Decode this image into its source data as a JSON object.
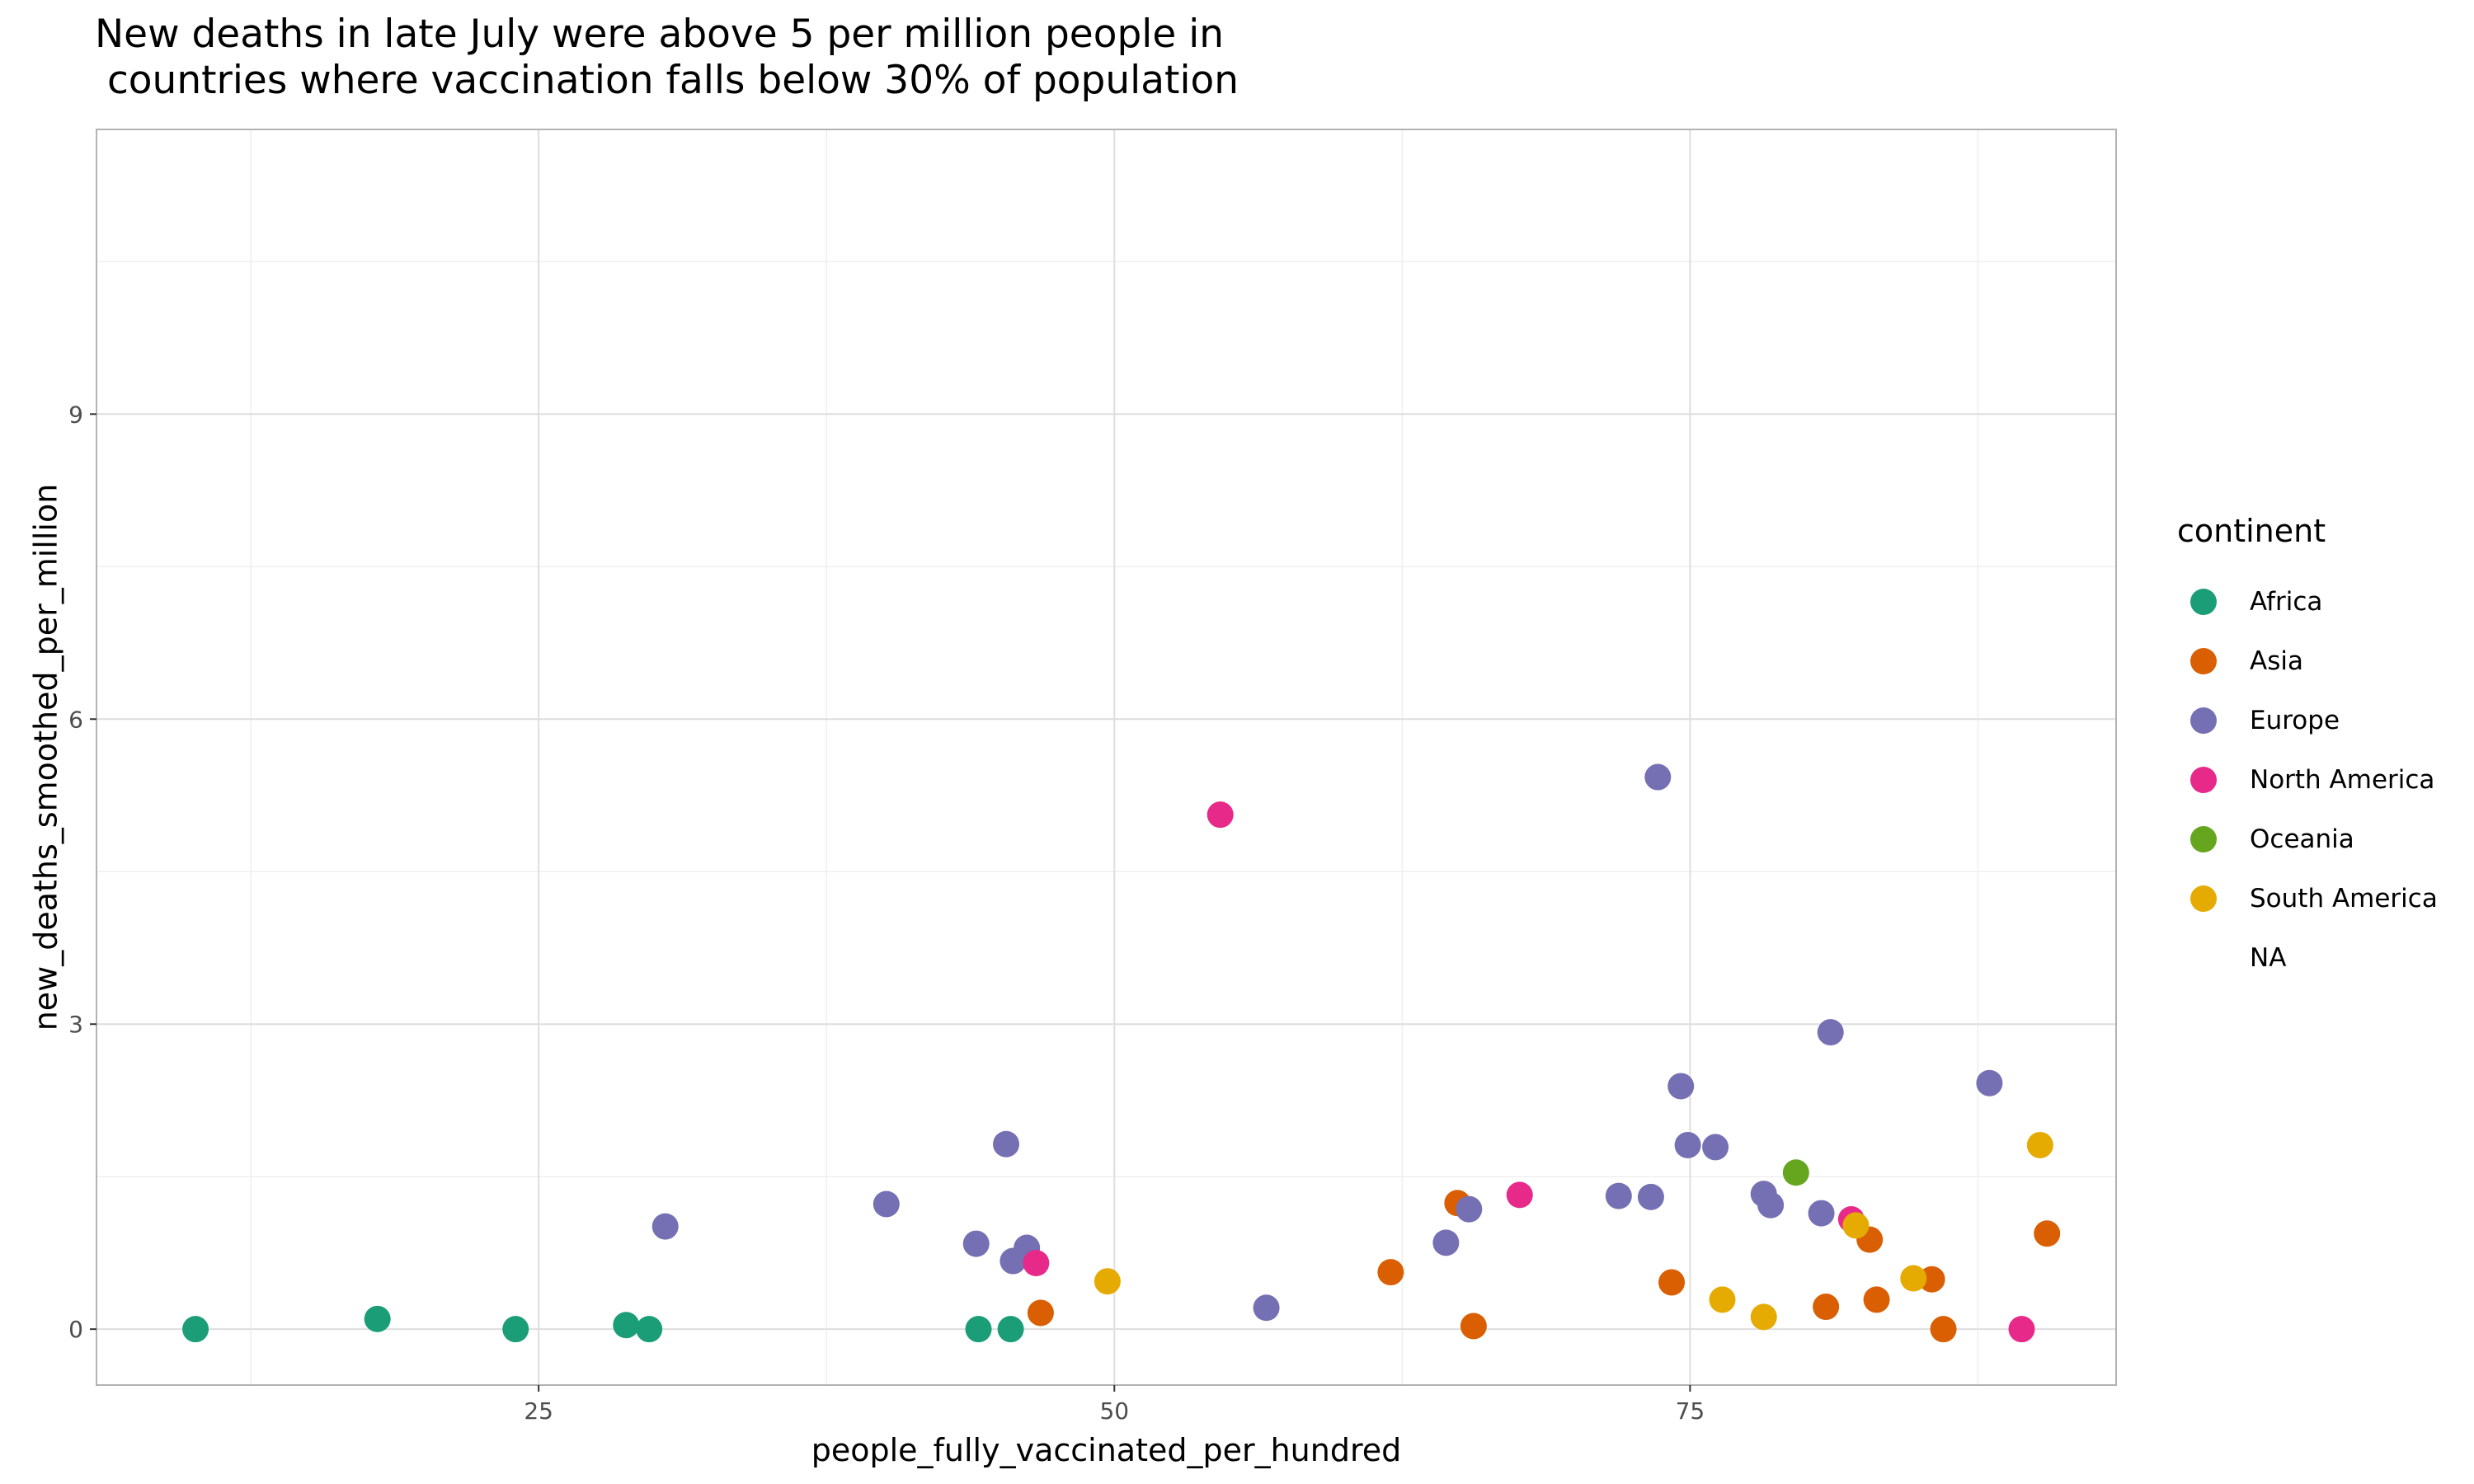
{
  "chart_data": {
    "type": "scatter",
    "title": "New deaths in late July were above 5 per million people in\n countries where vaccination falls below 30% of population",
    "xlabel": "people_fully_vaccinated_per_hundred",
    "ylabel": "new_deaths_smoothed_per_million",
    "xlim": [
      5.8,
      93.5
    ],
    "ylim": [
      -0.55,
      11.8
    ],
    "xticks": [
      25,
      50,
      75
    ],
    "yticks": [
      0,
      3,
      6,
      9
    ],
    "grid": true,
    "legend_title": "continent",
    "legend_position": "right",
    "series": [
      {
        "name": "Africa",
        "color": "#1B9E77",
        "points": [
          [
            10.1,
            0
          ],
          [
            18.0,
            0.1
          ],
          [
            24.0,
            0
          ],
          [
            28.8,
            0.04
          ],
          [
            29.8,
            0
          ],
          [
            44.1,
            0
          ],
          [
            45.5,
            0
          ]
        ]
      },
      {
        "name": "Asia",
        "color": "#D95F02",
        "points": [
          [
            46.8,
            0.16
          ],
          [
            62.0,
            0.56
          ],
          [
            64.9,
            1.24
          ],
          [
            65.6,
            0.03
          ],
          [
            74.2,
            0.46
          ],
          [
            80.9,
            0.22
          ],
          [
            82.8,
            0.88
          ],
          [
            83.1,
            0.29
          ],
          [
            85.5,
            0.49
          ],
          [
            86.0,
            0
          ],
          [
            90.5,
            0.94
          ]
        ]
      },
      {
        "name": "Europe",
        "color": "#7570B3",
        "points": [
          [
            30.5,
            1.01
          ],
          [
            40.1,
            1.23
          ],
          [
            44.0,
            0.84
          ],
          [
            45.3,
            1.82
          ],
          [
            45.6,
            0.67
          ],
          [
            46.2,
            0.8
          ],
          [
            56.6,
            0.21
          ],
          [
            64.4,
            0.85
          ],
          [
            65.4,
            1.18
          ],
          [
            71.9,
            1.31
          ],
          [
            73.3,
            1.3
          ],
          [
            73.6,
            5.43
          ],
          [
            74.6,
            2.39
          ],
          [
            74.9,
            1.81
          ],
          [
            76.1,
            1.79
          ],
          [
            78.2,
            1.33
          ],
          [
            78.5,
            1.22
          ],
          [
            80.7,
            1.14
          ],
          [
            81.1,
            2.92
          ],
          [
            88.0,
            2.42
          ]
        ]
      },
      {
        "name": "North America",
        "color": "#E7298A",
        "points": [
          [
            46.6,
            0.65
          ],
          [
            54.6,
            5.06
          ],
          [
            67.6,
            1.32
          ],
          [
            82.0,
            1.08
          ],
          [
            89.4,
            0
          ]
        ]
      },
      {
        "name": "Oceania",
        "color": "#66A61E",
        "points": [
          [
            79.6,
            1.54
          ]
        ]
      },
      {
        "name": "South America",
        "color": "#E6AB02",
        "points": [
          [
            49.7,
            0.47
          ],
          [
            76.4,
            0.29
          ],
          [
            78.2,
            0.12
          ],
          [
            82.2,
            1.02
          ],
          [
            84.7,
            0.5
          ],
          [
            90.2,
            1.81
          ]
        ]
      },
      {
        "name": "NA",
        "color": "#999999",
        "points": []
      }
    ]
  }
}
